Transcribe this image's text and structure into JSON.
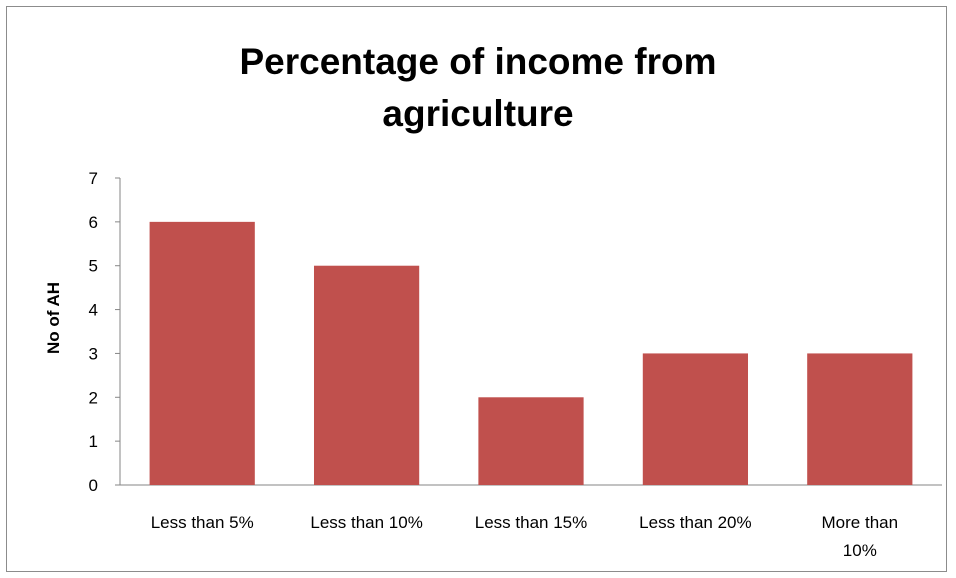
{
  "chart_data": {
    "type": "bar",
    "title": "Percentage of income from agriculture",
    "title_lines": [
      "Percentage of income from",
      "agriculture"
    ],
    "xlabel": "",
    "ylabel": "No of AH",
    "categories": [
      "Less than 5%",
      "Less than 10%",
      "Less than 15%",
      "Less than 20%",
      "More than 10%"
    ],
    "category_lines": [
      [
        "Less than 5%"
      ],
      [
        "Less than 10%"
      ],
      [
        "Less than 15%"
      ],
      [
        "Less than 20%"
      ],
      [
        "More than",
        "10%"
      ]
    ],
    "values": [
      6,
      5,
      2,
      3,
      3
    ],
    "ylim": [
      0,
      7
    ],
    "yticks": [
      0,
      1,
      2,
      3,
      4,
      5,
      6,
      7
    ],
    "grid": false,
    "legend": "none",
    "bar_color": "#c0504d",
    "axis_color": "#868686"
  }
}
